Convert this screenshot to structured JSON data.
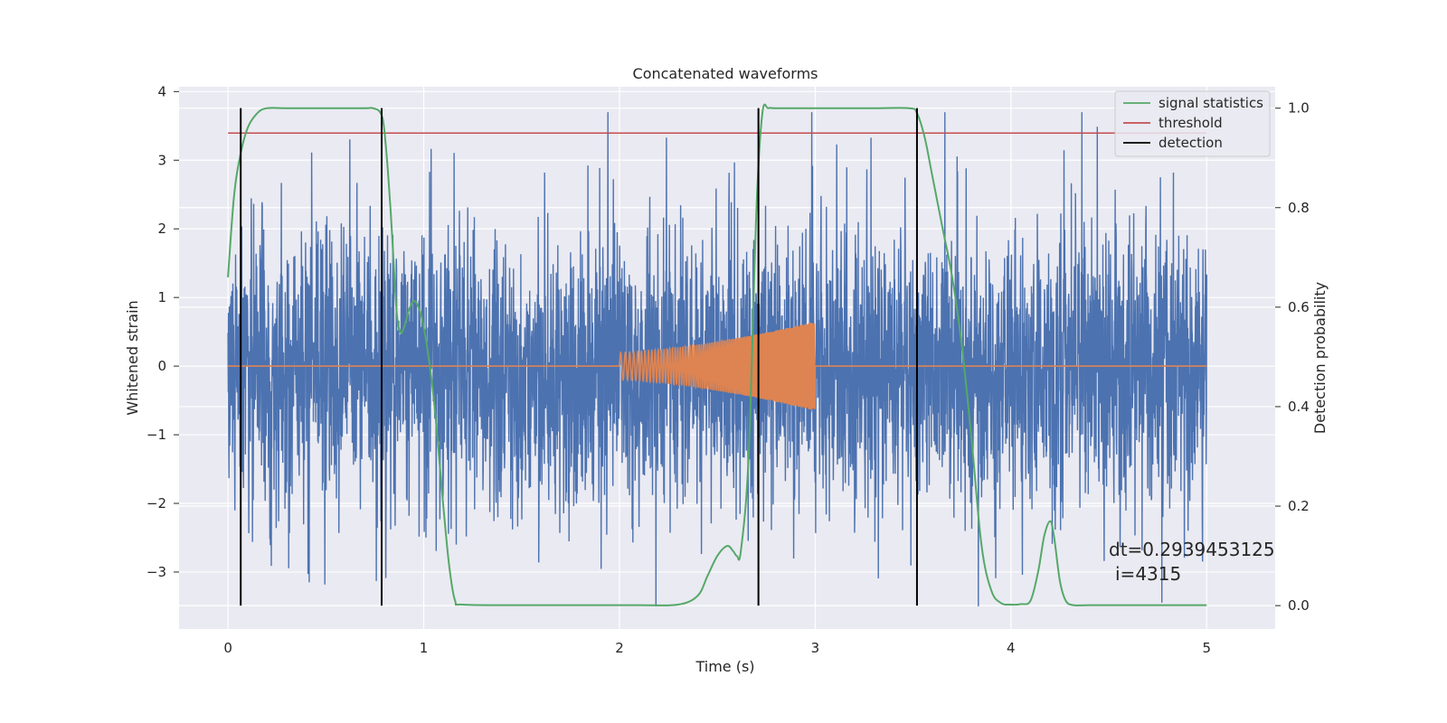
{
  "chart_data": {
    "type": "line",
    "title": "Concatenated waveforms",
    "xlabel": "Time (s)",
    "ylabel": "Whitened strain",
    "y2label": "Detection probability",
    "xlim": [
      -0.25,
      5.35
    ],
    "ylim": [
      -3.83,
      4.07
    ],
    "y2lim": [
      -0.047,
      1.043
    ],
    "xticks": [
      0,
      1,
      2,
      3,
      4,
      5
    ],
    "yticks": [
      -3,
      -2,
      -1,
      0,
      1,
      2,
      3,
      4
    ],
    "y2ticks": [
      0.0,
      0.2,
      0.4,
      0.6,
      0.8,
      1.0
    ],
    "xtick_labels": [
      "0",
      "1",
      "2",
      "3",
      "4",
      "5"
    ],
    "ytick_labels": [
      "−3",
      "−2",
      "−1",
      "0",
      "1",
      "2",
      "3",
      "4"
    ],
    "y2tick_labels": [
      "0.0",
      "0.2",
      "0.4",
      "0.6",
      "0.8",
      "1.0"
    ],
    "grid": true,
    "legend_position": "top-right",
    "colors": {
      "background": "#eaeaf2",
      "grid": "#ffffff",
      "strain": "#4c72b0",
      "injection": "#dd8452",
      "signal_statistics": "#55a868",
      "threshold": "#c44e52",
      "detection": "#000000"
    },
    "series": [
      {
        "name": "signal statistics",
        "axis": "right",
        "x": [
          0.0,
          0.03,
          0.06,
          0.1,
          0.15,
          0.2,
          0.3,
          0.5,
          0.7,
          0.74,
          0.78,
          0.8,
          0.83,
          0.86,
          0.88,
          0.9,
          0.93,
          0.96,
          1.0,
          1.05,
          1.1,
          1.13,
          1.16,
          1.2,
          1.5,
          1.8,
          2.1,
          2.3,
          2.4,
          2.45,
          2.5,
          2.55,
          2.58,
          2.6,
          2.62,
          2.66,
          2.7,
          2.73,
          2.76,
          2.8,
          3.0,
          3.3,
          3.48,
          3.52,
          3.56,
          3.6,
          3.65,
          3.7,
          3.75,
          3.8,
          3.85,
          3.9,
          3.95,
          4.0,
          4.05,
          4.1,
          4.14,
          4.17,
          4.2,
          4.22,
          4.25,
          4.28,
          4.32,
          4.4,
          4.7,
          5.0
        ],
        "values": [
          0.66,
          0.82,
          0.9,
          0.96,
          0.99,
          1.0,
          1.0,
          1.0,
          1.0,
          1.0,
          0.99,
          0.95,
          0.8,
          0.6,
          0.55,
          0.56,
          0.6,
          0.61,
          0.56,
          0.42,
          0.2,
          0.08,
          0.01,
          0.002,
          0.001,
          0.001,
          0.001,
          0.002,
          0.02,
          0.06,
          0.1,
          0.12,
          0.11,
          0.1,
          0.11,
          0.3,
          0.8,
          0.99,
          1.0,
          1.0,
          1.0,
          1.0,
          1.0,
          0.99,
          0.94,
          0.86,
          0.76,
          0.66,
          0.52,
          0.33,
          0.12,
          0.03,
          0.005,
          0.002,
          0.003,
          0.01,
          0.07,
          0.14,
          0.17,
          0.14,
          0.05,
          0.01,
          0.001,
          0.001,
          0.001,
          0.001
        ]
      },
      {
        "name": "threshold",
        "axis": "right",
        "x": [
          0,
          5
        ],
        "values": [
          0.95,
          0.95
        ]
      },
      {
        "name": "detection",
        "axis": "right",
        "x_positions": [
          0.065,
          0.785,
          2.71,
          3.52
        ],
        "ymin": 0.0,
        "ymax": 1.0
      }
    ],
    "strain_noise": {
      "axis": "left",
      "x_range": [
        0,
        5
      ],
      "typical_amplitude": 1.0,
      "max_peak": 3.7,
      "min_trough": -3.5
    },
    "injection": {
      "axis": "left",
      "x_range": [
        2.0,
        3.0
      ],
      "start_amplitude": 0.2,
      "end_amplitude": 0.65,
      "baseline": 0.0
    }
  },
  "annotation": {
    "line1": "dt=0.2939453125",
    "line2": "i=4315"
  }
}
